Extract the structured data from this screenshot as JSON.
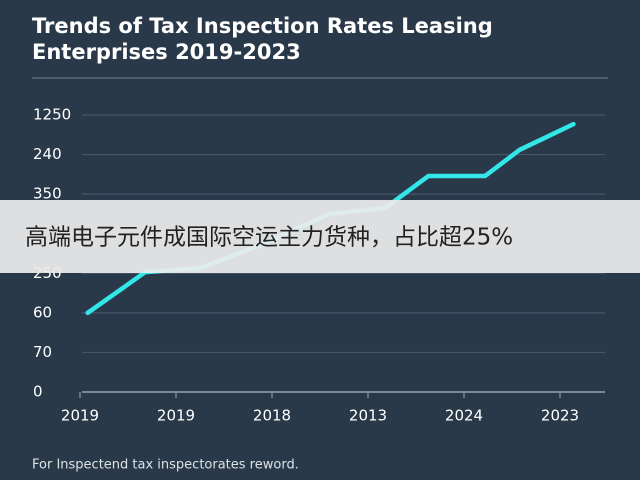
{
  "chart_data": {
    "type": "line",
    "title": [
      "Trends of Tax Inspection Rates Leasing",
      "Enterprises 2019-2023"
    ],
    "x": [
      0.08,
      0.68,
      1.25,
      1.88,
      2.6,
      3.18,
      3.63,
      4.22,
      4.58,
      4.84,
      5.14
    ],
    "series": [
      {
        "color": "#33e6e8",
        "values": [
          2.0,
          3.03,
          3.13,
          3.71,
          4.5,
          4.65,
          5.46,
          5.46,
          6.12,
          6.42,
          6.77
        ]
      }
    ],
    "xlim": [
      0,
      5.5
    ],
    "xticks": [
      {
        "value": 0,
        "label": "2019"
      },
      {
        "value": 1,
        "label": "2019"
      },
      {
        "value": 2,
        "label": "2018"
      },
      {
        "value": 3,
        "label": "2013"
      },
      {
        "value": 4,
        "label": "2024"
      },
      {
        "value": 5,
        "label": "2023"
      }
    ],
    "ylim": [
      0,
      7
    ],
    "yticks": [
      {
        "value": 7,
        "label": "1250"
      },
      {
        "value": 6,
        "label": "240"
      },
      {
        "value": 5,
        "label": "350"
      },
      {
        "value": 3,
        "label": "250"
      },
      {
        "value": 2,
        "label": "60"
      },
      {
        "value": 1,
        "label": "70"
      },
      0
    ],
    "grid": true,
    "footnote": "For Inspectend tax inspectorates reword."
  },
  "banner": "高端电子元件成国际空运主力货种，占比超25%"
}
